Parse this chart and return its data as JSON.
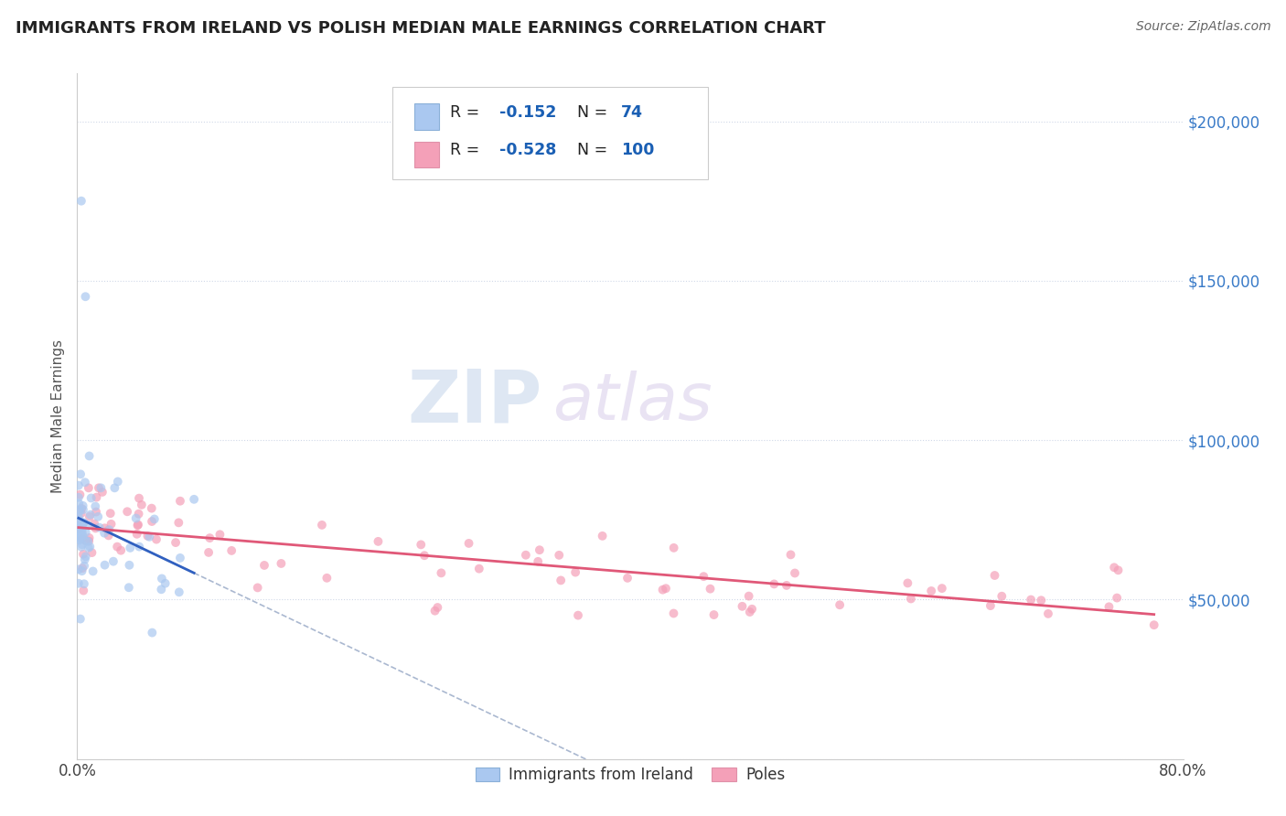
{
  "title": "IMMIGRANTS FROM IRELAND VS POLISH MEDIAN MALE EARNINGS CORRELATION CHART",
  "source": "Source: ZipAtlas.com",
  "ylabel": "Median Male Earnings",
  "yticks": [
    0,
    50000,
    100000,
    150000,
    200000
  ],
  "ytick_labels": [
    "",
    "$50,000",
    "$100,000",
    "$150,000",
    "$200,000"
  ],
  "xlim": [
    0.0,
    0.8
  ],
  "ylim": [
    0,
    215000
  ],
  "ireland_R": -0.152,
  "ireland_N": 74,
  "poles_R": -0.528,
  "poles_N": 100,
  "ireland_color": "#aac8f0",
  "poles_color": "#f4a0b8",
  "ireland_trend_color": "#3060c0",
  "poles_trend_color": "#e05878",
  "dashed_color": "#aab8d0",
  "watermark_zip": "ZIP",
  "watermark_atlas": "atlas",
  "background_color": "#ffffff",
  "grid_color": "#d0d8e8",
  "title_color": "#222222",
  "source_color": "#666666",
  "legend_text_color": "#222222",
  "legend_value_color": "#1a5fb4",
  "axis_label_color": "#555555",
  "tick_label_color_right": "#3a7bc8"
}
